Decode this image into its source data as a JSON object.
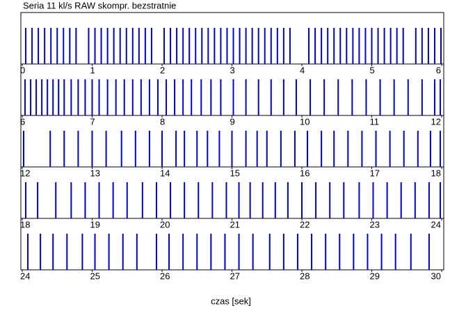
{
  "title": "Seria 11 kl/s RAW skompr. bezstratnie",
  "x_label": "czas [sek]",
  "color": "#0000cc",
  "chart_data": [
    {
      "type": "event",
      "xlim": [
        0,
        6
      ],
      "xticks": [
        0,
        1,
        2,
        3,
        4,
        5,
        6
      ],
      "x": [
        0.05,
        0.14,
        0.23,
        0.32,
        0.41,
        0.5,
        0.59,
        0.68,
        0.77,
        0.95,
        1.04,
        1.13,
        1.22,
        1.31,
        1.4,
        1.49,
        1.58,
        1.67,
        1.76,
        1.85,
        2.03,
        2.12,
        2.21,
        2.3,
        2.39,
        2.48,
        2.57,
        2.66,
        2.75,
        2.84,
        2.93,
        3.02,
        3.11,
        3.2,
        3.29,
        3.38,
        3.47,
        3.56,
        3.65,
        3.74,
        3.83,
        4.1,
        4.19,
        4.28,
        4.37,
        4.46,
        4.55,
        4.64,
        4.73,
        4.82,
        4.91,
        5,
        5.09,
        5.18,
        5.27,
        5.36,
        5.45,
        5.63,
        5.72,
        5.81,
        5.9,
        5.99
      ]
    },
    {
      "type": "event",
      "xlim": [
        6,
        12
      ],
      "xticks": [
        6,
        7,
        8,
        9,
        10,
        11,
        12
      ],
      "x": [
        6.04,
        6.12,
        6.2,
        6.28,
        6.36,
        6.44,
        6.52,
        6.6,
        6.7,
        6.8,
        6.9,
        7.0,
        7.1,
        7.22,
        7.34,
        7.46,
        7.58,
        7.7,
        7.82,
        7.94,
        8.06,
        8.18,
        8.3,
        8.42,
        8.56,
        8.7,
        8.84,
        9.02,
        9.2,
        9.38,
        9.56,
        9.74,
        9.92,
        10.12,
        10.32,
        10.52,
        10.72,
        10.92,
        11.12,
        11.32,
        11.52,
        11.72,
        11.9,
        11.98
      ]
    },
    {
      "type": "event",
      "xlim": [
        12,
        18
      ],
      "xticks": [
        12,
        13,
        14,
        15,
        16,
        17,
        18
      ],
      "x": [
        12.02,
        12.4,
        12.6,
        12.8,
        13.0,
        13.2,
        13.42,
        13.62,
        13.82,
        14.0,
        14.2,
        14.32,
        14.5,
        14.65,
        14.82,
        15.0,
        15.2,
        15.36,
        15.5,
        15.7,
        15.9,
        16.08,
        16.28,
        16.46,
        16.66,
        16.86,
        17.06,
        17.26,
        17.46,
        17.66,
        17.84,
        17.98
      ]
    },
    {
      "type": "event",
      "xlim": [
        18,
        24
      ],
      "xticks": [
        18,
        19,
        20,
        21,
        22,
        23,
        24
      ],
      "x": [
        18.05,
        18.22,
        18.48,
        18.7,
        18.9,
        19.1,
        19.3,
        19.5,
        19.72,
        19.92,
        20.12,
        20.32,
        20.52,
        20.72,
        20.92,
        21.1,
        21.26,
        21.44,
        21.62,
        21.8,
        22.0,
        22.2,
        22.4,
        22.6,
        22.82,
        23.02,
        23.22,
        23.42,
        23.62,
        23.82,
        23.98
      ]
    },
    {
      "type": "event",
      "xlim": [
        24,
        30
      ],
      "xticks": [
        24,
        25,
        26,
        27,
        28,
        29,
        30
      ],
      "x": [
        24.08,
        24.26,
        24.44,
        24.64,
        24.86,
        25.04,
        25.24,
        25.44,
        25.64,
        25.92,
        26.1,
        26.3,
        26.5,
        26.7,
        26.9,
        27.1,
        27.3,
        27.54,
        27.74,
        27.94,
        28.14,
        28.34,
        28.54,
        28.74,
        28.94,
        29.14,
        29.34,
        29.56,
        29.82
      ]
    }
  ]
}
